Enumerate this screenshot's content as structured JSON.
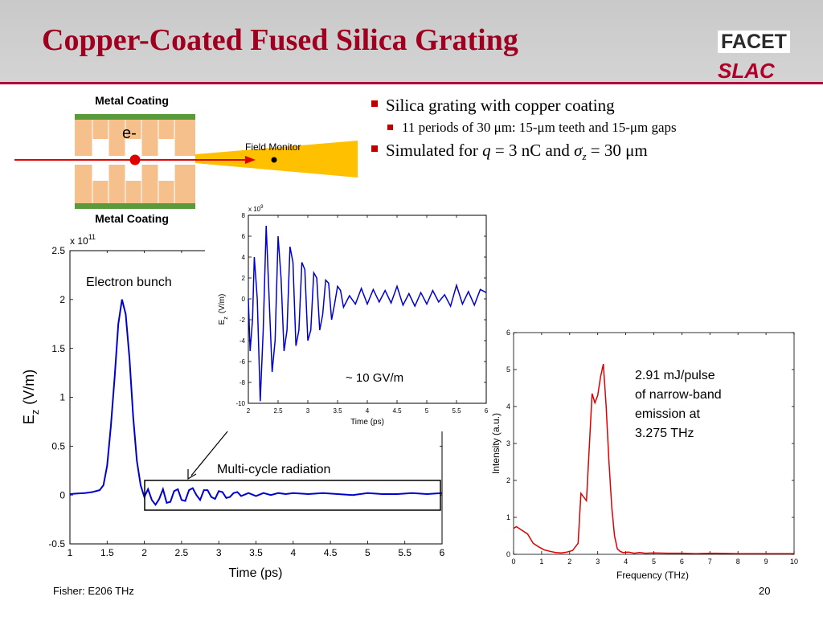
{
  "title": "Copper-Coated Fused Silica Grating",
  "logos": {
    "facet": "FACET",
    "slac": "SLAC"
  },
  "bullets": {
    "b1": "Silica grating with copper coating",
    "b1_sub": "11 periods of 30 μm: 15-μm teeth and 15-μm gaps",
    "b2_pre": "Simulated for ",
    "b2_q": "q",
    "b2_mid": " = 3 nC and ",
    "b2_sigma": "σ",
    "b2_z": "z",
    "b2_post": " = 30 μm"
  },
  "diagram": {
    "metal_top": "Metal Coating",
    "metal_bottom": "Metal Coating",
    "electron": "e-",
    "field_monitor": "Field Monitor"
  },
  "footer": {
    "left": "Fisher: E206 THz",
    "page": "20"
  },
  "colors": {
    "title": "#a00020",
    "blue_trace": "#0000cc",
    "red_trace": "#dd0000",
    "copper_green": "#5a9a3a",
    "silica": "#f6c08c",
    "monitor": "#ffc000"
  },
  "chart_data": [
    {
      "type": "line",
      "id": "main",
      "xlabel": "Time (ps)",
      "ylabel": "E",
      "ylabel_sub": "z",
      "ylabel_unit": "(V/m)",
      "y_exponent": "x 10",
      "y_exponent_power": "11",
      "xlim": [
        1,
        6
      ],
      "ylim": [
        -0.5,
        2.5
      ],
      "xticks": [
        "1",
        "1.5",
        "2",
        "2.5",
        "3",
        "3.5",
        "4",
        "4.5",
        "5",
        "5.5",
        "6"
      ],
      "yticks": [
        "-0.5",
        "0",
        "0.5",
        "1",
        "1.5",
        "2",
        "2.5"
      ],
      "annotations": {
        "bunch": "Electron bunch",
        "radiation": "Multi-cycle radiation"
      },
      "series": [
        {
          "x": [
            1.0,
            1.1,
            1.2,
            1.3,
            1.4,
            1.45,
            1.5,
            1.55,
            1.6,
            1.65,
            1.7,
            1.75,
            1.8,
            1.85,
            1.9,
            1.95,
            2.0,
            2.05,
            2.1,
            2.15,
            2.2,
            2.25,
            2.3,
            2.35,
            2.4,
            2.45,
            2.5,
            2.55,
            2.6,
            2.65,
            2.7,
            2.75,
            2.8,
            2.85,
            2.9,
            2.95,
            3.0,
            3.05,
            3.1,
            3.15,
            3.2,
            3.25,
            3.3,
            3.4,
            3.5,
            3.6,
            3.7,
            3.8,
            3.9,
            4.0,
            4.2,
            4.4,
            4.6,
            4.8,
            5.0,
            5.2,
            5.4,
            5.6,
            5.8,
            6.0
          ],
          "y": [
            0.01,
            0.015,
            0.02,
            0.03,
            0.05,
            0.1,
            0.3,
            0.7,
            1.2,
            1.75,
            2.0,
            1.85,
            1.4,
            0.8,
            0.35,
            0.1,
            -0.02,
            0.06,
            -0.05,
            -0.1,
            -0.04,
            0.06,
            -0.08,
            -0.07,
            0.04,
            0.06,
            -0.05,
            -0.06,
            0.05,
            0.07,
            0.0,
            -0.05,
            0.05,
            0.05,
            -0.02,
            -0.04,
            0.04,
            0.03,
            -0.03,
            -0.02,
            0.02,
            0.03,
            -0.01,
            0.02,
            -0.01,
            0.02,
            0.0,
            0.02,
            0.01,
            0.02,
            0.01,
            0.02,
            0.01,
            0.0,
            0.02,
            0.01,
            0.01,
            0.02,
            0.01,
            0.02
          ]
        }
      ]
    },
    {
      "type": "line",
      "id": "inset",
      "xlabel": "Time (ps)",
      "ylabel": "E",
      "ylabel_sub": "z",
      "ylabel_unit": "(V/m)",
      "y_exponent": "x 10",
      "y_exponent_power": "9",
      "xlim": [
        2,
        6
      ],
      "ylim": [
        -10,
        8
      ],
      "xticks": [
        "2",
        "2.5",
        "3",
        "3.5",
        "4",
        "4.5",
        "5",
        "5.5",
        "6"
      ],
      "yticks": [
        "-10",
        "-8",
        "-6",
        "-4",
        "-2",
        "0",
        "2",
        "4",
        "6",
        "8"
      ],
      "annotations": {
        "field": "~ 10 GV/m"
      },
      "series": [
        {
          "x": [
            2.0,
            2.03,
            2.07,
            2.1,
            2.15,
            2.2,
            2.25,
            2.3,
            2.35,
            2.4,
            2.45,
            2.5,
            2.55,
            2.6,
            2.65,
            2.7,
            2.75,
            2.8,
            2.85,
            2.9,
            2.95,
            3.0,
            3.05,
            3.1,
            3.15,
            3.2,
            3.25,
            3.3,
            3.35,
            3.4,
            3.45,
            3.5,
            3.55,
            3.6,
            3.7,
            3.8,
            3.9,
            4.0,
            4.1,
            4.2,
            4.3,
            4.4,
            4.5,
            4.6,
            4.7,
            4.8,
            4.9,
            5.0,
            5.1,
            5.2,
            5.3,
            5.4,
            5.5,
            5.6,
            5.7,
            5.8,
            5.9,
            6.0
          ],
          "y": [
            0.0,
            -5.0,
            -2.0,
            4.0,
            0.0,
            -9.8,
            -3.0,
            7.0,
            0.0,
            -7.0,
            -4.0,
            6.0,
            2.0,
            -5.0,
            -3.0,
            5.0,
            3.5,
            -4.5,
            -3.0,
            3.5,
            2.8,
            -4.0,
            -3.0,
            2.5,
            2.0,
            -3.0,
            -1.5,
            1.8,
            1.5,
            -2.0,
            -0.5,
            1.2,
            0.8,
            -0.8,
            0.3,
            -0.5,
            1.0,
            -0.5,
            0.9,
            -0.3,
            0.8,
            -0.4,
            1.2,
            -0.6,
            0.5,
            -0.7,
            0.6,
            -0.5,
            0.8,
            -0.3,
            0.4,
            -0.7,
            1.3,
            -0.5,
            0.7,
            -0.6,
            0.9,
            0.6
          ]
        }
      ]
    },
    {
      "type": "line",
      "id": "spectrum",
      "xlabel": "Frequency (THz)",
      "ylabel": "Intensity (a.u.)",
      "xlim": [
        0,
        10
      ],
      "ylim": [
        0,
        6
      ],
      "xticks": [
        "0",
        "1",
        "2",
        "3",
        "4",
        "5",
        "6",
        "7",
        "8",
        "9",
        "10"
      ],
      "yticks": [
        "0",
        "1",
        "2",
        "3",
        "4",
        "5",
        "6"
      ],
      "annotations": {
        "energy": [
          "2.91 mJ/pulse",
          "of narrow-band",
          "emission at",
          "3.275 THz"
        ]
      },
      "series": [
        {
          "x": [
            0.0,
            0.1,
            0.3,
            0.5,
            0.7,
            0.9,
            1.1,
            1.3,
            1.5,
            1.7,
            1.9,
            2.1,
            2.3,
            2.4,
            2.6,
            2.8,
            2.9,
            3.0,
            3.1,
            3.2,
            3.3,
            3.4,
            3.5,
            3.6,
            3.7,
            3.8,
            3.9,
            4.1,
            4.3,
            4.5,
            4.7,
            5.0,
            5.5,
            6.0,
            6.5,
            7.0,
            8.0,
            9.0,
            10.0
          ],
          "y": [
            0.7,
            0.75,
            0.65,
            0.55,
            0.3,
            0.2,
            0.12,
            0.08,
            0.05,
            0.04,
            0.06,
            0.1,
            0.3,
            1.65,
            1.45,
            4.35,
            4.1,
            4.3,
            4.8,
            5.15,
            4.0,
            2.5,
            1.3,
            0.5,
            0.15,
            0.08,
            0.05,
            0.06,
            0.03,
            0.05,
            0.03,
            0.04,
            0.03,
            0.03,
            0.02,
            0.03,
            0.02,
            0.02,
            0.02
          ]
        }
      ]
    }
  ]
}
